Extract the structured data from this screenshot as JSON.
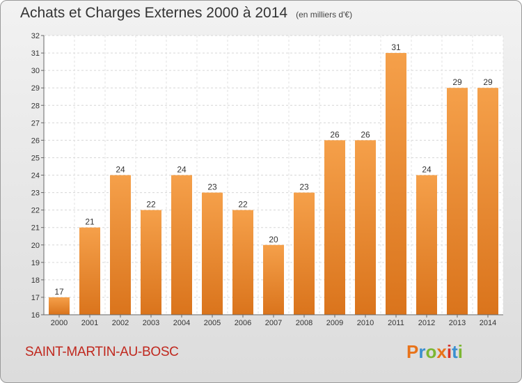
{
  "title": "Achats et Charges Externes 2000 à 2014",
  "unit": "(en milliers d'€)",
  "location": "SAINT-MARTIN-AU-BOSC",
  "logo": {
    "text": "Proxiti",
    "colors": [
      "#e8731a",
      "#3a8fd0",
      "#7cb733",
      "#e8731a",
      "#d8322a",
      "#3a8fd0",
      "#7cb733"
    ]
  },
  "chart_data": {
    "type": "bar",
    "categories": [
      "2000",
      "2001",
      "2002",
      "2003",
      "2004",
      "2005",
      "2006",
      "2007",
      "2008",
      "2009",
      "2010",
      "2011",
      "2012",
      "2013",
      "2014"
    ],
    "values": [
      17,
      21,
      24,
      22,
      24,
      23,
      22,
      20,
      23,
      26,
      26,
      31,
      24,
      29,
      29
    ],
    "title": "Achats et Charges Externes 2000 à 2014",
    "ylim": [
      16,
      32
    ],
    "yticks": [
      16,
      17,
      18,
      19,
      20,
      21,
      22,
      23,
      24,
      25,
      26,
      27,
      28,
      29,
      30,
      31,
      32
    ],
    "grid": true,
    "bar_color": "#f0922e",
    "bar_color_dark": "#d9731b"
  }
}
